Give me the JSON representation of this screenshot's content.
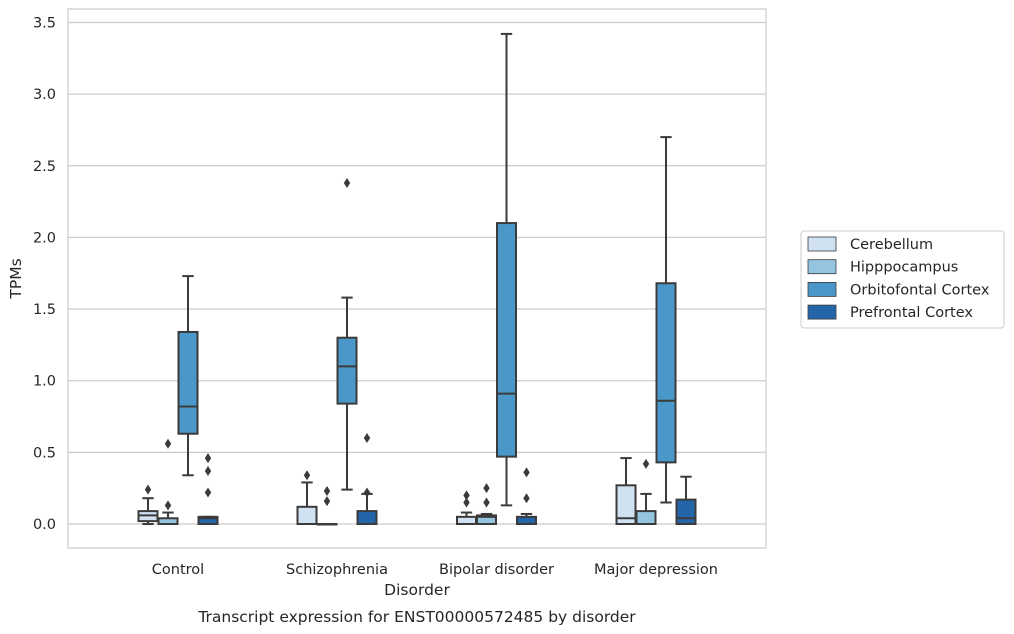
{
  "chart_data": {
    "type": "boxplot",
    "caption": "Transcript expression for ENST00000572485 by disorder",
    "xlabel": "Disorder",
    "ylabel": "TPMs",
    "ylim": [
      -0.17,
      3.6
    ],
    "yticks": [
      0.0,
      0.5,
      1.0,
      1.5,
      2.0,
      2.5,
      3.0,
      3.5
    ],
    "ytick_labels": [
      "0.0",
      "0.5",
      "1.0",
      "1.5",
      "2.0",
      "2.5",
      "3.0",
      "3.5"
    ],
    "categories": [
      "Control",
      "Schizophrenia",
      "Bipolar disorder",
      "Major depression"
    ],
    "grid": "horizontal",
    "legend_position": "right",
    "series": [
      {
        "name": "Cerebellum",
        "color": "#d0e1f2",
        "boxes": [
          {
            "whislo": 0.0,
            "q1": 0.02,
            "med": 0.06,
            "q3": 0.09,
            "whishi": 0.18,
            "fliers": [
              0.24
            ]
          },
          {
            "whislo": 0.0,
            "q1": 0.0,
            "med": 0.0,
            "q3": 0.12,
            "whishi": 0.29,
            "fliers": [
              0.34
            ]
          },
          {
            "whislo": 0.0,
            "q1": 0.0,
            "med": 0.0,
            "q3": 0.05,
            "whishi": 0.08,
            "fliers": [
              0.15,
              0.2
            ]
          },
          {
            "whislo": 0.0,
            "q1": 0.0,
            "med": 0.04,
            "q3": 0.27,
            "whishi": 0.46,
            "fliers": []
          }
        ]
      },
      {
        "name": "Hipppocampus",
        "color": "#94c4df",
        "boxes": [
          {
            "whislo": 0.0,
            "q1": 0.0,
            "med": 0.0,
            "q3": 0.04,
            "whishi": 0.08,
            "fliers": [
              0.13,
              0.56
            ]
          },
          {
            "whislo": 0.0,
            "q1": 0.0,
            "med": 0.0,
            "q3": 0.0,
            "whishi": 0.0,
            "fliers": [
              0.16,
              0.23
            ]
          },
          {
            "whislo": 0.0,
            "q1": 0.0,
            "med": 0.05,
            "q3": 0.06,
            "whishi": 0.07,
            "fliers": [
              0.15,
              0.25
            ]
          },
          {
            "whislo": 0.0,
            "q1": 0.0,
            "med": 0.0,
            "q3": 0.09,
            "whishi": 0.21,
            "fliers": [
              0.42
            ]
          }
        ]
      },
      {
        "name": "Orbitofontal Cortex",
        "color": "#4a98c9",
        "boxes": [
          {
            "whislo": 0.34,
            "q1": 0.63,
            "med": 0.82,
            "q3": 1.34,
            "whishi": 1.73,
            "fliers": []
          },
          {
            "whislo": 0.24,
            "q1": 0.84,
            "med": 1.1,
            "q3": 1.3,
            "whishi": 1.58,
            "fliers": [
              2.38
            ]
          },
          {
            "whislo": 0.13,
            "q1": 0.47,
            "med": 0.91,
            "q3": 2.1,
            "whishi": 3.42,
            "fliers": []
          },
          {
            "whislo": 0.15,
            "q1": 0.43,
            "med": 0.86,
            "q3": 1.68,
            "whishi": 2.7,
            "fliers": []
          }
        ]
      },
      {
        "name": "Prefrontal Cortex",
        "color": "#2464a8",
        "boxes": [
          {
            "whislo": 0.0,
            "q1": 0.0,
            "med": 0.04,
            "q3": 0.05,
            "whishi": 0.05,
            "fliers": [
              0.22,
              0.37,
              0.46
            ]
          },
          {
            "whislo": 0.0,
            "q1": 0.0,
            "med": 0.0,
            "q3": 0.09,
            "whishi": 0.21,
            "fliers": [
              0.22,
              0.6
            ]
          },
          {
            "whislo": 0.0,
            "q1": 0.0,
            "med": 0.0,
            "q3": 0.05,
            "whishi": 0.07,
            "fliers": [
              0.18,
              0.36
            ]
          },
          {
            "whislo": 0.0,
            "q1": 0.0,
            "med": 0.04,
            "q3": 0.17,
            "whishi": 0.33,
            "fliers": []
          }
        ]
      }
    ]
  }
}
